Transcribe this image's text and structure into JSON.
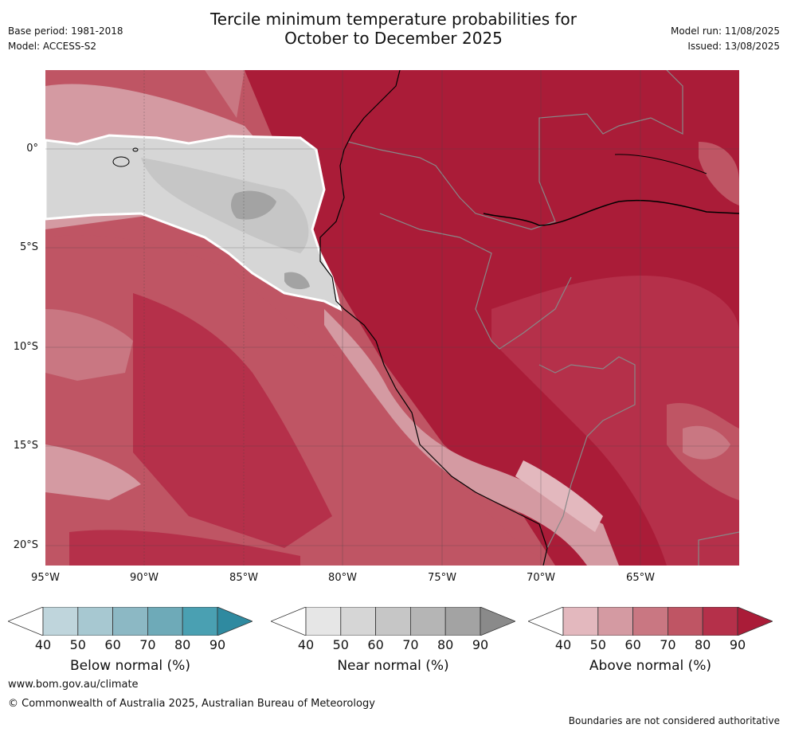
{
  "title": {
    "line1": "Tercile minimum temperature probabilities for",
    "line2": "October to December 2025"
  },
  "meta_left": {
    "base_period": "Base period: 1981-2018",
    "model": "Model: ACCESS-S2"
  },
  "meta_right": {
    "model_run": "Model run: 11/08/2025",
    "issued": "Issued: 13/08/2025"
  },
  "map": {
    "lat_labels": [
      "0°",
      "5°S",
      "10°S",
      "15°S",
      "20°S"
    ],
    "lon_labels": [
      "95°W",
      "90°W",
      "85°W",
      "80°W",
      "75°W",
      "70°W",
      "65°W"
    ]
  },
  "colorbars": [
    {
      "name": "Below normal (%)",
      "ticks": [
        "40",
        "50",
        "60",
        "70",
        "80",
        "90"
      ],
      "colors": [
        "#bfd5dc",
        "#a7c8d1",
        "#8cb8c4",
        "#6eaab8",
        "#4aa0b2",
        "#2f8aa0"
      ]
    },
    {
      "name": "Near normal (%)",
      "ticks": [
        "40",
        "50",
        "60",
        "70",
        "80",
        "90"
      ],
      "colors": [
        "#e6e6e6",
        "#d6d6d6",
        "#c6c6c6",
        "#b5b5b5",
        "#a3a3a3",
        "#8a8a8a"
      ]
    },
    {
      "name": "Above normal (%)",
      "ticks": [
        "40",
        "50",
        "60",
        "70",
        "80",
        "90"
      ],
      "colors": [
        "#e3b8be",
        "#d49aa2",
        "#c97782",
        "#bf5564",
        "#b5304a",
        "#aa1c38"
      ]
    }
  ],
  "footer": {
    "url": "www.bom.gov.au/climate",
    "copyright": "© Commonwealth of Australia 2025, Australian Bureau of Meteorology",
    "disclaimer": "Boundaries are not considered authoritative"
  }
}
